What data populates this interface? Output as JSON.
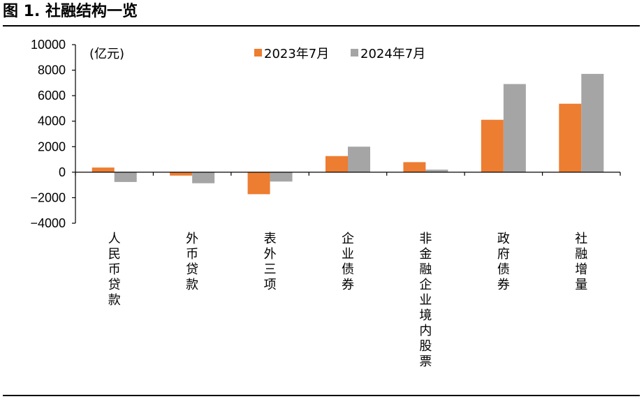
{
  "figure_title": "图 1. 社融结构一览",
  "chart_data": {
    "type": "bar",
    "unit_label": "(亿元)",
    "categories": [
      "人民币贷款",
      "外币贷款",
      "表外三项",
      "企业债券",
      "非金融企业境内股票",
      "政府债券",
      "社融增量"
    ],
    "series": [
      {
        "name": "2023年7月",
        "color": "#ED7D31",
        "values": [
          364,
          -267,
          -1724,
          1264,
          788,
          4109,
          5368
        ]
      },
      {
        "name": "2024年7月",
        "color": "#A5A5A5",
        "values": [
          -767,
          -867,
          -734,
          2002,
          199,
          6911,
          7707
        ]
      }
    ],
    "ylim": [
      -4000,
      10000
    ],
    "yticks": [
      10000,
      8000,
      6000,
      4000,
      2000,
      0,
      -2000,
      -4000
    ],
    "ytick_labels": [
      "10000",
      "8000",
      "6000",
      "4000",
      "2000",
      "0",
      "−2000",
      "−4000"
    ],
    "grid": false,
    "legend_position": "top-center"
  }
}
